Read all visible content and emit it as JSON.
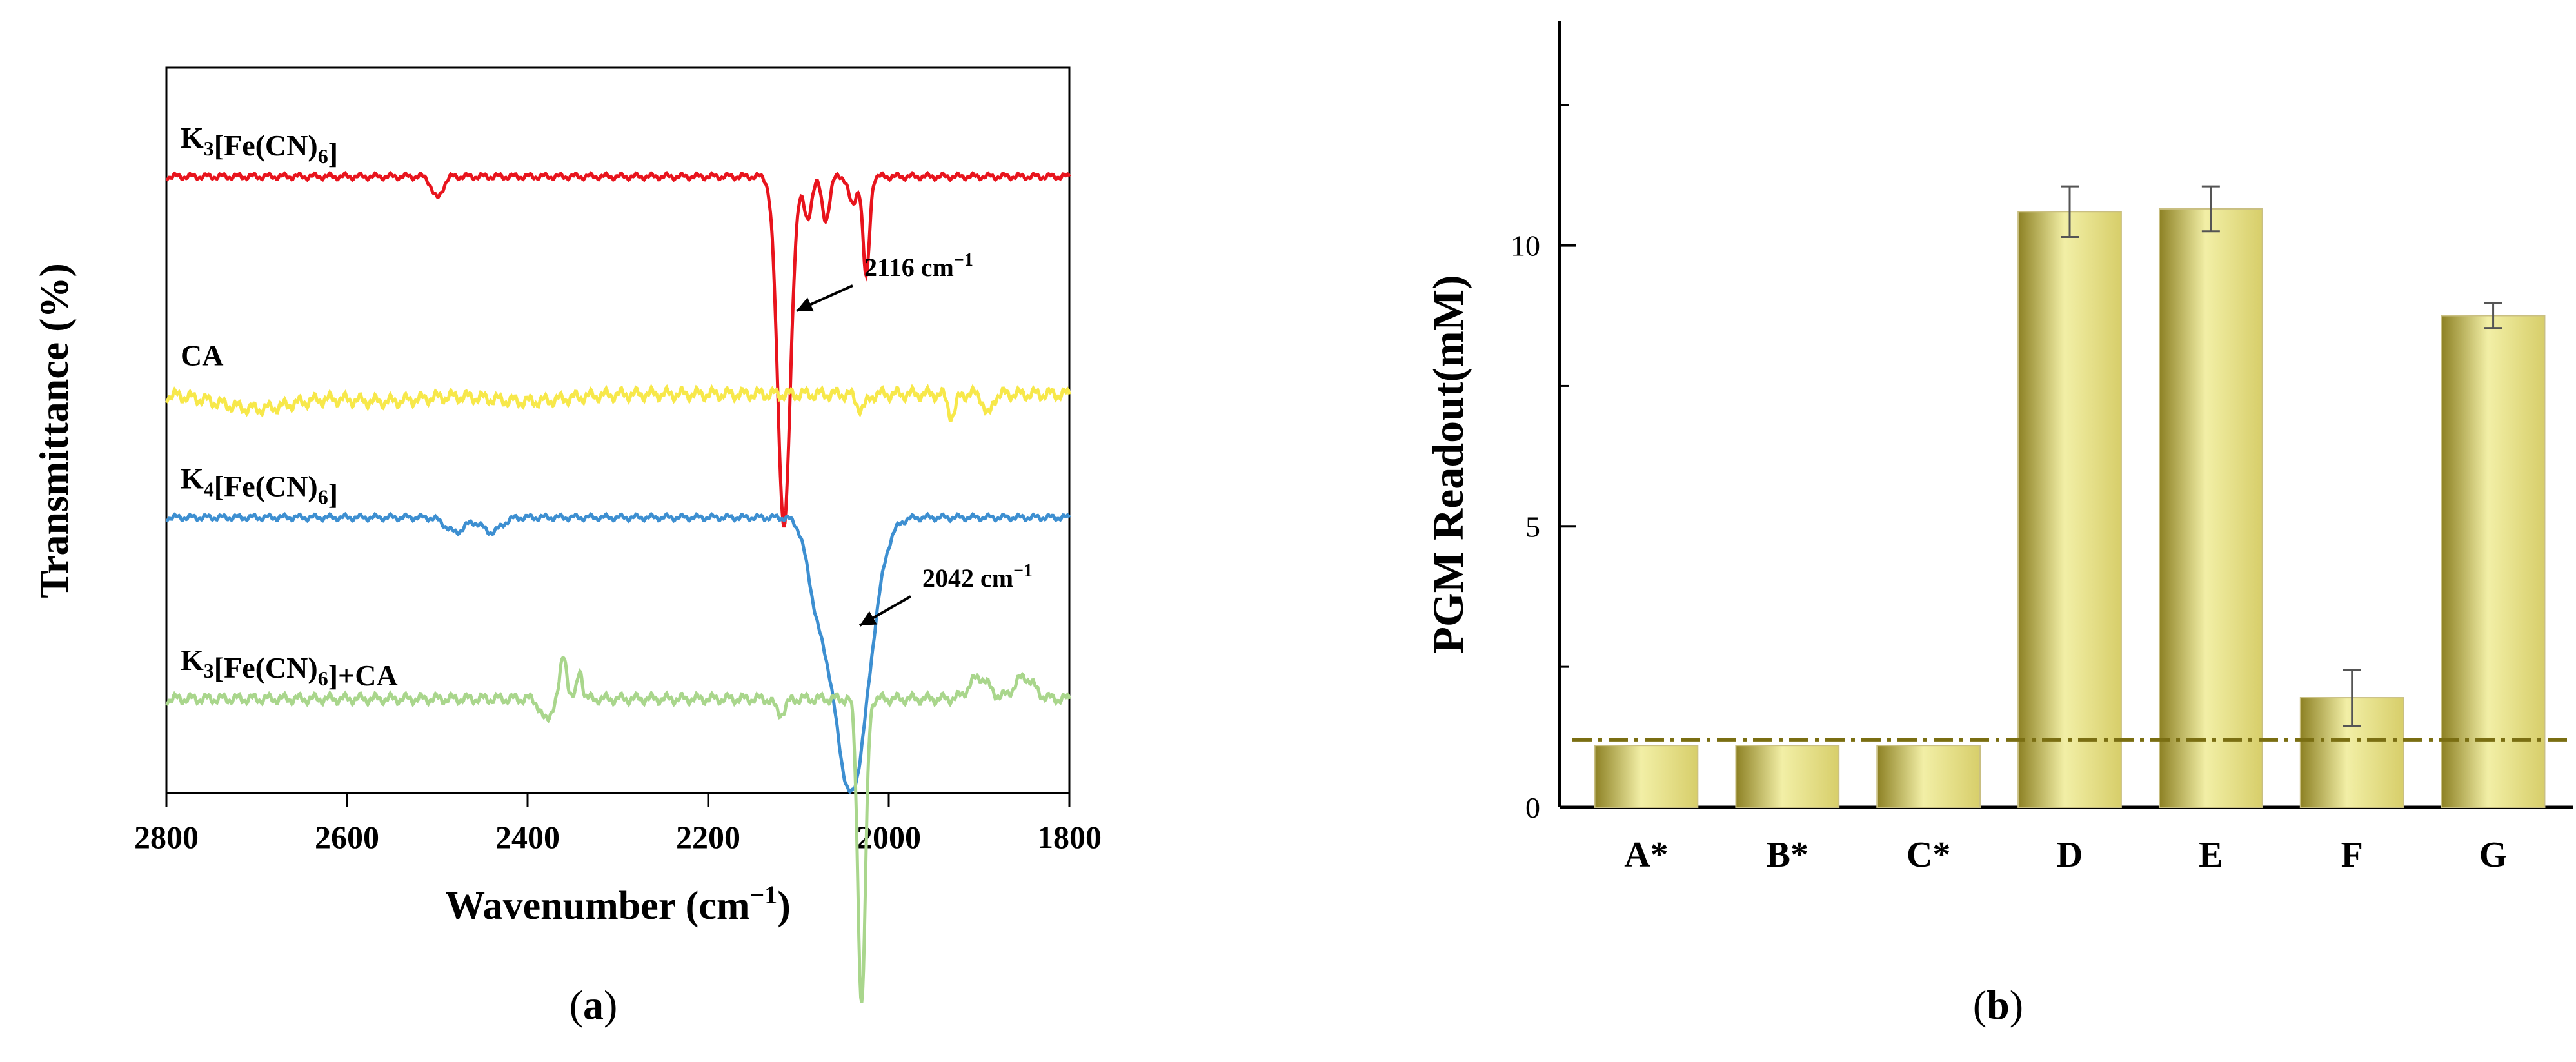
{
  "colors": {
    "k3": "#e8141d",
    "ca": "#f7e84a",
    "k4": "#3d8fd1",
    "mix": "#a9d68c",
    "bar_light": "#f2efa6",
    "bar_mid": "#d7ce6a",
    "bar_dark": "#8d8124",
    "threshold": "#7a6e12",
    "axis": "#000000",
    "error": "#555555"
  },
  "chart_data": [
    {
      "type": "line",
      "panel_label": "(a)",
      "panel_letter": "a",
      "xlabel": "Wavenumber (cm",
      "xlabel_sup": "−1",
      "xlabel_close": ")",
      "ylabel": "Transmittance (%)",
      "xlim": [
        2800,
        1800
      ],
      "x_reversed": true,
      "xticks": [
        2800,
        2600,
        2400,
        2200,
        2000,
        1800
      ],
      "yticks": [],
      "series": [
        {
          "name": "K3[Fe(CN)6]",
          "label_parts": [
            [
              "K",
              ""
            ],
            [
              "3",
              "sub"
            ],
            [
              "[Fe(CN)",
              ""
            ],
            [
              "6",
              "sub"
            ],
            [
              "]",
              ""
            ]
          ],
          "color_key": "k3",
          "baseline": 85,
          "noise": 0.3,
          "features": [
            [
              2500,
              -3,
              8
            ],
            [
              2116,
              -48,
              10
            ],
            [
              2090,
              -6,
              6
            ],
            [
              2070,
              -6,
              6
            ],
            [
              2040,
              -4,
              6
            ],
            [
              2025,
              -14,
              5
            ]
          ]
        },
        {
          "name": "CA",
          "label_parts": [
            [
              "CA",
              ""
            ]
          ],
          "color_key": "ca",
          "baseline": 55,
          "noise": 0.6,
          "features": [
            [
              2700,
              -2,
              60
            ],
            [
              2560,
              -1,
              60
            ],
            [
              2400,
              -1,
              60
            ],
            [
              2030,
              -2,
              8
            ],
            [
              1930,
              -3,
              6
            ],
            [
              1890,
              -3,
              6
            ]
          ]
        },
        {
          "name": "K4[Fe(CN)6]",
          "label_parts": [
            [
              "K",
              ""
            ],
            [
              "4",
              "sub"
            ],
            [
              "[Fe(CN)",
              ""
            ],
            [
              "6",
              "sub"
            ],
            [
              "]",
              ""
            ]
          ],
          "color_key": "k4",
          "baseline": 38,
          "noise": 0.3,
          "features": [
            [
              2480,
              -2,
              15
            ],
            [
              2440,
              -2,
              15
            ],
            [
              2042,
              -38,
              28
            ],
            [
              2080,
              -8,
              15
            ]
          ]
        },
        {
          "name": "K3[Fe(CN)6]+CA",
          "label_parts": [
            [
              "K",
              ""
            ],
            [
              "3",
              "sub"
            ],
            [
              "[Fe(CN)",
              ""
            ],
            [
              "6",
              "sub"
            ],
            [
              "]+CA",
              ""
            ]
          ],
          "color_key": "mix",
          "baseline": 13,
          "noise": 0.5,
          "features": [
            [
              2360,
              6,
              5
            ],
            [
              2342,
              4,
              4
            ],
            [
              2380,
              -3,
              8
            ],
            [
              2120,
              -2,
              8
            ],
            [
              2030,
              -42,
              6
            ],
            [
              1900,
              3,
              15
            ],
            [
              1850,
              3,
              15
            ]
          ]
        }
      ],
      "annotations": [
        {
          "text": "2116 cm",
          "sup": "−1",
          "x": 2116
        },
        {
          "text": "2042 cm",
          "sup": "−1",
          "x": 2042
        }
      ]
    },
    {
      "type": "bar",
      "panel_label": "(b)",
      "panel_letter": "b",
      "xlabel": "",
      "ylabel": "PGM Readout(mM)",
      "ylim": [
        0,
        14
      ],
      "yticks": [
        0,
        5,
        10
      ],
      "categories": [
        "A*",
        "B*",
        "C*",
        "D",
        "E",
        "F",
        "G"
      ],
      "values": [
        1.1,
        1.1,
        1.1,
        10.6,
        10.65,
        1.95,
        8.75
      ],
      "errors": [
        0,
        0,
        0,
        0.45,
        0.4,
        0.5,
        0.22
      ],
      "threshold": 1.2
    }
  ]
}
